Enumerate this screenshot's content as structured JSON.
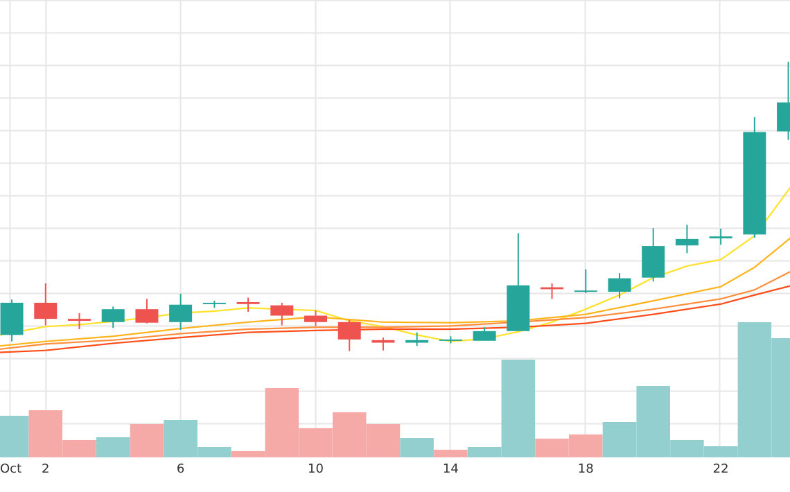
{
  "chart_data": {
    "type": "candlestick",
    "x_ticks": [
      {
        "x": 1,
        "label": "Oct"
      },
      {
        "x": 2,
        "label": "2"
      },
      {
        "x": 6,
        "label": "6"
      },
      {
        "x": 10,
        "label": "10"
      },
      {
        "x": 14,
        "label": "14"
      },
      {
        "x": 18,
        "label": "18"
      },
      {
        "x": 22,
        "label": "22"
      }
    ],
    "x_range": [
      0.65,
      24.05
    ],
    "y_range": [
      0,
      710
    ],
    "grid": true,
    "colors": {
      "up": "#26a69a",
      "down": "#ef5350",
      "up_volume": "#93cfcf",
      "down_volume": "#f5aaa7",
      "grid": "#e6e6e6",
      "ma_fast": "#ffe12a",
      "ma_mid": "#ffb31a",
      "ma_slow": "#ff8d3b",
      "ma_slowest": "#ff4d1a"
    },
    "candles": [
      {
        "x": 1,
        "open": 190,
        "high": 245,
        "low": 180,
        "close": 240
      },
      {
        "x": 2,
        "open": 240,
        "high": 270,
        "low": 205,
        "close": 215
      },
      {
        "x": 3,
        "open": 215,
        "high": 224,
        "low": 199,
        "close": 212
      },
      {
        "x": 4,
        "open": 210,
        "high": 234,
        "low": 201,
        "close": 230
      },
      {
        "x": 5,
        "open": 230,
        "high": 246,
        "low": 208,
        "close": 209
      },
      {
        "x": 6,
        "open": 210,
        "high": 254,
        "low": 198,
        "close": 237
      },
      {
        "x": 7,
        "open": 238,
        "high": 243,
        "low": 232,
        "close": 240
      },
      {
        "x": 8,
        "open": 241,
        "high": 248,
        "low": 226,
        "close": 238
      },
      {
        "x": 9,
        "open": 236,
        "high": 240,
        "low": 205,
        "close": 220
      },
      {
        "x": 10,
        "open": 220,
        "high": 228,
        "low": 204,
        "close": 210
      },
      {
        "x": 11,
        "open": 210,
        "high": 213,
        "low": 165,
        "close": 183
      },
      {
        "x": 12,
        "open": 182,
        "high": 186,
        "low": 166,
        "close": 178
      },
      {
        "x": 13,
        "open": 178,
        "high": 194,
        "low": 173,
        "close": 182
      },
      {
        "x": 14,
        "open": 181,
        "high": 188,
        "low": 177,
        "close": 183
      },
      {
        "x": 15,
        "open": 181,
        "high": 202,
        "low": 181,
        "close": 196
      },
      {
        "x": 16,
        "open": 196,
        "high": 348,
        "low": 196,
        "close": 267
      },
      {
        "x": 17,
        "open": 264,
        "high": 270,
        "low": 246,
        "close": 261
      },
      {
        "x": 18,
        "open": 259,
        "high": 292,
        "low": 255,
        "close": 259
      },
      {
        "x": 19,
        "open": 257,
        "high": 286,
        "low": 247,
        "close": 278
      },
      {
        "x": 20,
        "open": 279,
        "high": 356,
        "low": 273,
        "close": 328
      },
      {
        "x": 21,
        "open": 329,
        "high": 361,
        "low": 317,
        "close": 339
      },
      {
        "x": 22,
        "open": 340,
        "high": 355,
        "low": 330,
        "close": 343
      },
      {
        "x": 23,
        "open": 346,
        "high": 528,
        "low": 341,
        "close": 505
      },
      {
        "x": 24,
        "open": 506,
        "high": 614,
        "low": 493,
        "close": 551
      }
    ],
    "volume": [
      {
        "x": 1,
        "value": 60,
        "direction": "up"
      },
      {
        "x": 2,
        "value": 68,
        "direction": "down"
      },
      {
        "x": 3,
        "value": 25,
        "direction": "down"
      },
      {
        "x": 4,
        "value": 29,
        "direction": "up"
      },
      {
        "x": 5,
        "value": 48,
        "direction": "down"
      },
      {
        "x": 6,
        "value": 54,
        "direction": "up"
      },
      {
        "x": 7,
        "value": 15,
        "direction": "up"
      },
      {
        "x": 8,
        "value": 9,
        "direction": "down"
      },
      {
        "x": 9,
        "value": 100,
        "direction": "down"
      },
      {
        "x": 10,
        "value": 42,
        "direction": "down"
      },
      {
        "x": 11,
        "value": 65,
        "direction": "down"
      },
      {
        "x": 12,
        "value": 48,
        "direction": "down"
      },
      {
        "x": 13,
        "value": 28,
        "direction": "up"
      },
      {
        "x": 14,
        "value": 11,
        "direction": "down"
      },
      {
        "x": 15,
        "value": 15,
        "direction": "up"
      },
      {
        "x": 16,
        "value": 141,
        "direction": "up"
      },
      {
        "x": 17,
        "value": 27,
        "direction": "down"
      },
      {
        "x": 18,
        "value": 33,
        "direction": "down"
      },
      {
        "x": 19,
        "value": 51,
        "direction": "up"
      },
      {
        "x": 20,
        "value": 103,
        "direction": "up"
      },
      {
        "x": 21,
        "value": 25,
        "direction": "up"
      },
      {
        "x": 22,
        "value": 16,
        "direction": "up"
      },
      {
        "x": 23,
        "value": 195,
        "direction": "up"
      },
      {
        "x": 24,
        "value": 172,
        "direction": "up"
      }
    ],
    "series": [
      {
        "key": "ma_fast",
        "color": "#ffe12a",
        "points": [
          {
            "x": 0.65,
            "y": 190
          },
          {
            "x": 2,
            "y": 203
          },
          {
            "x": 3,
            "y": 206
          },
          {
            "x": 4,
            "y": 211
          },
          {
            "x": 5,
            "y": 217
          },
          {
            "x": 6,
            "y": 224
          },
          {
            "x": 7,
            "y": 227
          },
          {
            "x": 8,
            "y": 232
          },
          {
            "x": 9,
            "y": 230
          },
          {
            "x": 10,
            "y": 228
          },
          {
            "x": 11,
            "y": 212
          },
          {
            "x": 12,
            "y": 203
          },
          {
            "x": 13,
            "y": 190
          },
          {
            "x": 14,
            "y": 180
          },
          {
            "x": 15,
            "y": 184
          },
          {
            "x": 16,
            "y": 195
          },
          {
            "x": 17,
            "y": 210
          },
          {
            "x": 18,
            "y": 230
          },
          {
            "x": 19,
            "y": 252
          },
          {
            "x": 20,
            "y": 279
          },
          {
            "x": 21,
            "y": 297
          },
          {
            "x": 22,
            "y": 307
          },
          {
            "x": 23,
            "y": 344
          },
          {
            "x": 24.05,
            "y": 418
          }
        ]
      },
      {
        "key": "ma_mid",
        "color": "#ffb31a",
        "points": [
          {
            "x": 0.65,
            "y": 173
          },
          {
            "x": 2,
            "y": 180
          },
          {
            "x": 4,
            "y": 188
          },
          {
            "x": 6,
            "y": 200
          },
          {
            "x": 8,
            "y": 210
          },
          {
            "x": 10,
            "y": 218
          },
          {
            "x": 12,
            "y": 210
          },
          {
            "x": 14,
            "y": 209
          },
          {
            "x": 16,
            "y": 212
          },
          {
            "x": 18,
            "y": 222
          },
          {
            "x": 20,
            "y": 243
          },
          {
            "x": 22,
            "y": 265
          },
          {
            "x": 23,
            "y": 295
          },
          {
            "x": 24.05,
            "y": 340
          }
        ]
      },
      {
        "key": "ma_slow",
        "color": "#ff8d3b",
        "points": [
          {
            "x": 0.65,
            "y": 168
          },
          {
            "x": 2,
            "y": 176
          },
          {
            "x": 4,
            "y": 182
          },
          {
            "x": 6,
            "y": 192
          },
          {
            "x": 8,
            "y": 199
          },
          {
            "x": 10,
            "y": 202
          },
          {
            "x": 12,
            "y": 202
          },
          {
            "x": 14,
            "y": 204
          },
          {
            "x": 16,
            "y": 210
          },
          {
            "x": 18,
            "y": 217
          },
          {
            "x": 20,
            "y": 230
          },
          {
            "x": 22,
            "y": 246
          },
          {
            "x": 23,
            "y": 260
          },
          {
            "x": 24.05,
            "y": 288
          }
        ]
      },
      {
        "key": "ma_slowest",
        "color": "#ff4d1a",
        "points": [
          {
            "x": 0.65,
            "y": 163
          },
          {
            "x": 2,
            "y": 166
          },
          {
            "x": 4,
            "y": 177
          },
          {
            "x": 6,
            "y": 186
          },
          {
            "x": 8,
            "y": 194
          },
          {
            "x": 10,
            "y": 197
          },
          {
            "x": 12,
            "y": 199
          },
          {
            "x": 14,
            "y": 199
          },
          {
            "x": 16,
            "y": 202
          },
          {
            "x": 18,
            "y": 208
          },
          {
            "x": 20,
            "y": 222
          },
          {
            "x": 22,
            "y": 238
          },
          {
            "x": 23,
            "y": 252
          },
          {
            "x": 24.05,
            "y": 266
          }
        ]
      }
    ]
  }
}
